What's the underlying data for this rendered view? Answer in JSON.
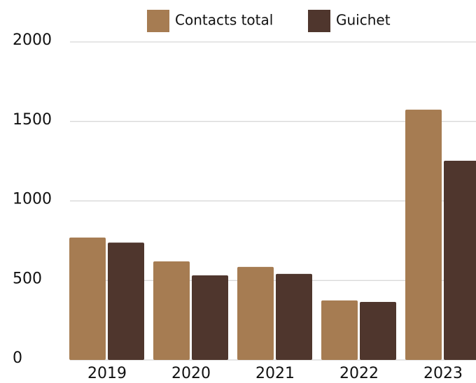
{
  "chart_data": {
    "type": "bar",
    "categories": [
      "2019",
      "2020",
      "2021",
      "2022",
      "2023"
    ],
    "series": [
      {
        "name": "Contacts total",
        "color": "#a67c52",
        "values": [
          770,
          620,
          585,
          374,
          1574
        ]
      },
      {
        "name": "Guichet",
        "color": "#4f362d",
        "values": [
          738,
          532,
          541,
          365,
          1253
        ]
      }
    ],
    "ylim": [
      0,
      2000
    ],
    "yticks": [
      0,
      500,
      1000,
      1500,
      2000
    ],
    "grid": true,
    "legend": "top"
  }
}
